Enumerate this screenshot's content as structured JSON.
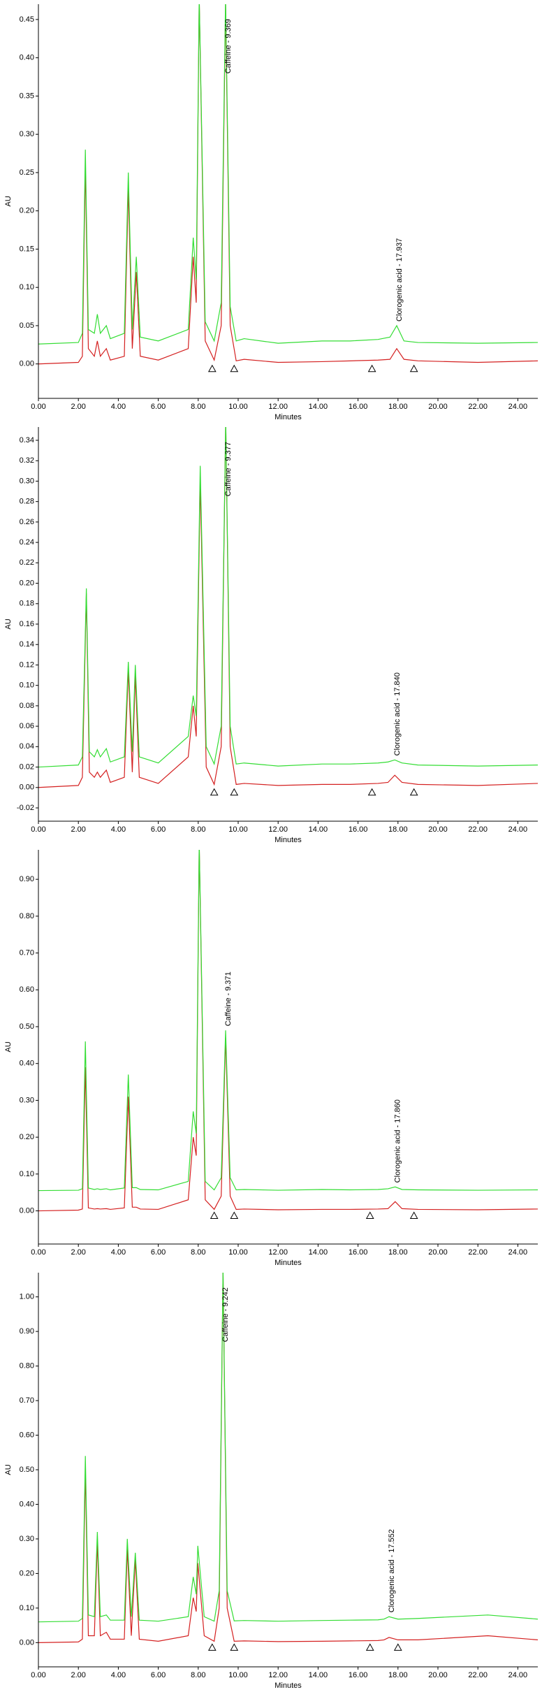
{
  "chart_data": [
    {
      "type": "line",
      "x_label": "Minutes",
      "y_label": "AU",
      "x": [
        0,
        2.0,
        2.2,
        2.35,
        2.5,
        2.8,
        2.95,
        3.1,
        3.4,
        3.6,
        4.3,
        4.5,
        4.7,
        4.9,
        5.1,
        6.0,
        7.5,
        7.75,
        7.9,
        8.05,
        8.35,
        8.8,
        9.15,
        9.369,
        9.6,
        9.9,
        10.3,
        12,
        14.2,
        15.6,
        17.0,
        17.6,
        17.937,
        18.3,
        19,
        22,
        25
      ],
      "series": [
        {
          "color": "#d42020",
          "values": [
            0,
            0.002,
            0.01,
            0.26,
            0.02,
            0.01,
            0.03,
            0.01,
            0.02,
            0.005,
            0.01,
            0.23,
            0.02,
            0.12,
            0.01,
            0.005,
            0.02,
            0.14,
            0.08,
            0.48,
            0.03,
            0.005,
            0.05,
            0.47,
            0.05,
            0.004,
            0.006,
            0.002,
            0.003,
            0.004,
            0.005,
            0.006,
            0.02,
            0.006,
            0.004,
            0.002,
            0.004
          ]
        },
        {
          "color": "#33dd33",
          "values": [
            0.026,
            0.028,
            0.04,
            0.28,
            0.045,
            0.04,
            0.065,
            0.04,
            0.05,
            0.033,
            0.04,
            0.25,
            0.045,
            0.14,
            0.035,
            0.03,
            0.045,
            0.165,
            0.11,
            0.48,
            0.055,
            0.03,
            0.08,
            0.48,
            0.075,
            0.03,
            0.033,
            0.027,
            0.03,
            0.03,
            0.032,
            0.035,
            0.05,
            0.03,
            0.028,
            0.027,
            0.028
          ]
        }
      ],
      "annotations": [
        {
          "text": "Caffeine - 9.369",
          "x": 9.369
        },
        {
          "text": "Clorogenic acid - 17.937",
          "x": 17.937
        }
      ],
      "baseline_marks": [
        8.7,
        9.8,
        16.7,
        18.8
      ],
      "xlim": [
        0,
        25
      ],
      "xticks": [
        {
          "value": 0,
          "label": "0.00"
        },
        {
          "value": 2,
          "label": "2.00"
        },
        {
          "value": 4,
          "label": "4.00"
        },
        {
          "value": 6,
          "label": "6.00"
        },
        {
          "value": 8,
          "label": "8.00"
        },
        {
          "value": 10,
          "label": "10.00"
        },
        {
          "value": 12,
          "label": "12.00"
        },
        {
          "value": 14,
          "label": "14.00"
        },
        {
          "value": 16,
          "label": "16.00"
        },
        {
          "value": 18,
          "label": "18.00"
        },
        {
          "value": 20,
          "label": "20.00"
        },
        {
          "value": 22,
          "label": "22.00"
        },
        {
          "value": 24,
          "label": "24.00"
        }
      ],
      "ylim": [
        -0.045,
        0.47
      ],
      "yticks": [
        {
          "value": 0,
          "label": "0.00"
        },
        {
          "value": 0.05,
          "label": "0.05"
        },
        {
          "value": 0.1,
          "label": "0.10"
        },
        {
          "value": 0.15,
          "label": "0.15"
        },
        {
          "value": 0.2,
          "label": "0.20"
        },
        {
          "value": 0.25,
          "label": "0.25"
        },
        {
          "value": 0.3,
          "label": "0.30"
        },
        {
          "value": 0.35,
          "label": "0.35"
        },
        {
          "value": 0.4,
          "label": "0.40"
        },
        {
          "value": 0.45,
          "label": "0.45"
        }
      ]
    },
    {
      "type": "line",
      "x_label": "Minutes",
      "y_label": "AU",
      "x": [
        0,
        2.0,
        2.2,
        2.4,
        2.55,
        2.8,
        2.95,
        3.1,
        3.4,
        3.6,
        4.3,
        4.5,
        4.7,
        4.85,
        5.05,
        6.0,
        7.5,
        7.75,
        7.9,
        8.1,
        8.4,
        8.8,
        9.15,
        9.377,
        9.6,
        9.9,
        10.3,
        12,
        14.2,
        15.6,
        17.0,
        17.5,
        17.84,
        18.2,
        19,
        22,
        25
      ],
      "series": [
        {
          "color": "#d42020",
          "values": [
            0,
            0.002,
            0.01,
            0.19,
            0.015,
            0.01,
            0.015,
            0.01,
            0.017,
            0.005,
            0.01,
            0.115,
            0.015,
            0.11,
            0.01,
            0.004,
            0.03,
            0.08,
            0.05,
            0.3,
            0.02,
            0.003,
            0.04,
            0.36,
            0.04,
            0.003,
            0.004,
            0.002,
            0.003,
            0.003,
            0.004,
            0.005,
            0.012,
            0.005,
            0.003,
            0.002,
            0.004
          ]
        },
        {
          "color": "#33dd33",
          "values": [
            0.02,
            0.022,
            0.03,
            0.195,
            0.035,
            0.03,
            0.037,
            0.03,
            0.038,
            0.025,
            0.03,
            0.123,
            0.035,
            0.12,
            0.03,
            0.024,
            0.05,
            0.09,
            0.07,
            0.315,
            0.04,
            0.023,
            0.06,
            0.36,
            0.06,
            0.023,
            0.024,
            0.021,
            0.023,
            0.023,
            0.024,
            0.025,
            0.027,
            0.024,
            0.022,
            0.021,
            0.022
          ]
        }
      ],
      "annotations": [
        {
          "text": "Caffeine - 9.377",
          "x": 9.377
        },
        {
          "text": "Clorogenic acid - 17.840",
          "x": 17.84
        }
      ],
      "baseline_marks": [
        8.8,
        9.8,
        16.7,
        18.8
      ],
      "xlim": [
        0,
        25
      ],
      "xticks": [
        {
          "value": 0,
          "label": "0.00"
        },
        {
          "value": 2,
          "label": "2.00"
        },
        {
          "value": 4,
          "label": "4.00"
        },
        {
          "value": 6,
          "label": "6.00"
        },
        {
          "value": 8,
          "label": "8.00"
        },
        {
          "value": 10,
          "label": "10.00"
        },
        {
          "value": 12,
          "label": "12.00"
        },
        {
          "value": 14,
          "label": "14.00"
        },
        {
          "value": 16,
          "label": "16.00"
        },
        {
          "value": 18,
          "label": "18.00"
        },
        {
          "value": 20,
          "label": "20.00"
        },
        {
          "value": 22,
          "label": "22.00"
        },
        {
          "value": 24,
          "label": "24.00"
        }
      ],
      "ylim": [
        -0.033,
        0.353
      ],
      "yticks": [
        {
          "value": -0.02,
          "label": "-0.02"
        },
        {
          "value": 0,
          "label": "0.00"
        },
        {
          "value": 0.02,
          "label": "0.02"
        },
        {
          "value": 0.04,
          "label": "0.04"
        },
        {
          "value": 0.06,
          "label": "0.06"
        },
        {
          "value": 0.08,
          "label": "0.08"
        },
        {
          "value": 0.1,
          "label": "0.10"
        },
        {
          "value": 0.12,
          "label": "0.12"
        },
        {
          "value": 0.14,
          "label": "0.14"
        },
        {
          "value": 0.16,
          "label": "0.16"
        },
        {
          "value": 0.18,
          "label": "0.18"
        },
        {
          "value": 0.2,
          "label": "0.20"
        },
        {
          "value": 0.22,
          "label": "0.22"
        },
        {
          "value": 0.24,
          "label": "0.24"
        },
        {
          "value": 0.26,
          "label": "0.26"
        },
        {
          "value": 0.28,
          "label": "0.28"
        },
        {
          "value": 0.3,
          "label": "0.30"
        },
        {
          "value": 0.32,
          "label": "0.32"
        },
        {
          "value": 0.34,
          "label": "0.34"
        }
      ]
    },
    {
      "type": "line",
      "x_label": "Minutes",
      "y_label": "AU",
      "x": [
        0,
        2.0,
        2.2,
        2.35,
        2.5,
        2.8,
        2.95,
        3.1,
        3.4,
        3.6,
        4.3,
        4.5,
        4.7,
        4.9,
        5.1,
        6.0,
        7.5,
        7.75,
        7.9,
        8.05,
        8.35,
        8.8,
        9.15,
        9.371,
        9.6,
        9.9,
        10.3,
        12,
        14.2,
        15.6,
        17.0,
        17.5,
        17.86,
        18.2,
        19,
        22,
        25
      ],
      "series": [
        {
          "color": "#d42020",
          "values": [
            0,
            0.002,
            0.005,
            0.39,
            0.008,
            0.005,
            0.006,
            0.005,
            0.006,
            0.004,
            0.008,
            0.31,
            0.01,
            0.01,
            0.005,
            0.004,
            0.03,
            0.2,
            0.15,
            1.0,
            0.03,
            0.004,
            0.04,
            0.47,
            0.04,
            0.004,
            0.005,
            0.003,
            0.004,
            0.004,
            0.005,
            0.006,
            0.025,
            0.006,
            0.004,
            0.003,
            0.005
          ]
        },
        {
          "color": "#33dd33",
          "values": [
            0.055,
            0.056,
            0.06,
            0.46,
            0.062,
            0.058,
            0.06,
            0.058,
            0.06,
            0.057,
            0.062,
            0.37,
            0.063,
            0.063,
            0.058,
            0.057,
            0.08,
            0.27,
            0.21,
            1.0,
            0.08,
            0.057,
            0.09,
            0.49,
            0.09,
            0.057,
            0.058,
            0.056,
            0.058,
            0.057,
            0.058,
            0.06,
            0.065,
            0.058,
            0.057,
            0.056,
            0.057
          ]
        }
      ],
      "annotations": [
        {
          "text": "Caffeine - 9.371",
          "x": 9.371
        },
        {
          "text": "Clorogenic acid - 17.860",
          "x": 17.86
        }
      ],
      "baseline_marks": [
        8.8,
        9.8,
        16.6,
        18.8
      ],
      "xlim": [
        0,
        25
      ],
      "xticks": [
        {
          "value": 0,
          "label": "0.00"
        },
        {
          "value": 2,
          "label": "2.00"
        },
        {
          "value": 4,
          "label": "4.00"
        },
        {
          "value": 6,
          "label": "6.00"
        },
        {
          "value": 8,
          "label": "8.00"
        },
        {
          "value": 10,
          "label": "10.00"
        },
        {
          "value": 12,
          "label": "12.00"
        },
        {
          "value": 14,
          "label": "14.00"
        },
        {
          "value": 16,
          "label": "16.00"
        },
        {
          "value": 18,
          "label": "18.00"
        },
        {
          "value": 20,
          "label": "20.00"
        },
        {
          "value": 22,
          "label": "22.00"
        },
        {
          "value": 24,
          "label": "24.00"
        }
      ],
      "ylim": [
        -0.09,
        0.98
      ],
      "yticks": [
        {
          "value": 0,
          "label": "0.00"
        },
        {
          "value": 0.1,
          "label": "0.10"
        },
        {
          "value": 0.2,
          "label": "0.20"
        },
        {
          "value": 0.3,
          "label": "0.30"
        },
        {
          "value": 0.4,
          "label": "0.40"
        },
        {
          "value": 0.5,
          "label": "0.50"
        },
        {
          "value": 0.6,
          "label": "0.60"
        },
        {
          "value": 0.7,
          "label": "0.70"
        },
        {
          "value": 0.8,
          "label": "0.80"
        },
        {
          "value": 0.9,
          "label": "0.90"
        }
      ]
    },
    {
      "type": "line",
      "x_label": "Minutes",
      "y_label": "AU",
      "x": [
        0,
        2.0,
        2.2,
        2.35,
        2.5,
        2.8,
        2.95,
        3.1,
        3.4,
        3.6,
        4.3,
        4.45,
        4.65,
        4.85,
        5.05,
        6.0,
        7.5,
        7.75,
        7.9,
        7.98,
        8.3,
        8.8,
        9.05,
        9.242,
        9.45,
        9.8,
        10.3,
        12,
        14.2,
        15.6,
        17.0,
        17.3,
        17.552,
        18.0,
        19,
        22.5,
        25
      ],
      "series": [
        {
          "color": "#d42020",
          "values": [
            0,
            0.002,
            0.01,
            0.5,
            0.02,
            0.02,
            0.29,
            0.02,
            0.03,
            0.01,
            0.01,
            0.27,
            0.02,
            0.24,
            0.01,
            0.004,
            0.02,
            0.13,
            0.09,
            0.23,
            0.02,
            0.004,
            0.1,
            1.08,
            0.1,
            0.004,
            0.005,
            0.003,
            0.004,
            0.005,
            0.006,
            0.008,
            0.015,
            0.008,
            0.008,
            0.02,
            0.008
          ]
        },
        {
          "color": "#33dd33",
          "values": [
            0.06,
            0.062,
            0.07,
            0.54,
            0.08,
            0.075,
            0.32,
            0.075,
            0.08,
            0.065,
            0.065,
            0.3,
            0.075,
            0.26,
            0.065,
            0.062,
            0.075,
            0.19,
            0.14,
            0.28,
            0.075,
            0.062,
            0.15,
            1.08,
            0.15,
            0.063,
            0.064,
            0.062,
            0.064,
            0.065,
            0.066,
            0.068,
            0.075,
            0.068,
            0.07,
            0.08,
            0.068
          ]
        }
      ],
      "annotations": [
        {
          "text": "Caffeine - 9.242",
          "x": 9.242
        },
        {
          "text": "Clorogenic acid - 17.552",
          "x": 17.552
        }
      ],
      "baseline_marks": [
        8.7,
        9.8,
        16.6,
        18.0
      ],
      "xlim": [
        0,
        25
      ],
      "xticks": [
        {
          "value": 0,
          "label": "0.00"
        },
        {
          "value": 2,
          "label": "2.00"
        },
        {
          "value": 4,
          "label": "4.00"
        },
        {
          "value": 6,
          "label": "6.00"
        },
        {
          "value": 8,
          "label": "8.00"
        },
        {
          "value": 10,
          "label": "10.00"
        },
        {
          "value": 12,
          "label": "12.00"
        },
        {
          "value": 14,
          "label": "14.00"
        },
        {
          "value": 16,
          "label": "16.00"
        },
        {
          "value": 18,
          "label": "18.00"
        },
        {
          "value": 20,
          "label": "20.00"
        },
        {
          "value": 22,
          "label": "22.00"
        },
        {
          "value": 24,
          "label": "24.00"
        }
      ],
      "ylim": [
        -0.07,
        1.07
      ],
      "yticks": [
        {
          "value": 0,
          "label": "0.00"
        },
        {
          "value": 0.1,
          "label": "0.10"
        },
        {
          "value": 0.2,
          "label": "0.20"
        },
        {
          "value": 0.3,
          "label": "0.30"
        },
        {
          "value": 0.4,
          "label": "0.40"
        },
        {
          "value": 0.5,
          "label": "0.50"
        },
        {
          "value": 0.6,
          "label": "0.60"
        },
        {
          "value": 0.7,
          "label": "0.70"
        },
        {
          "value": 0.8,
          "label": "0.80"
        },
        {
          "value": 0.9,
          "label": "0.90"
        },
        {
          "value": 1.0,
          "label": "1.00"
        }
      ]
    }
  ]
}
